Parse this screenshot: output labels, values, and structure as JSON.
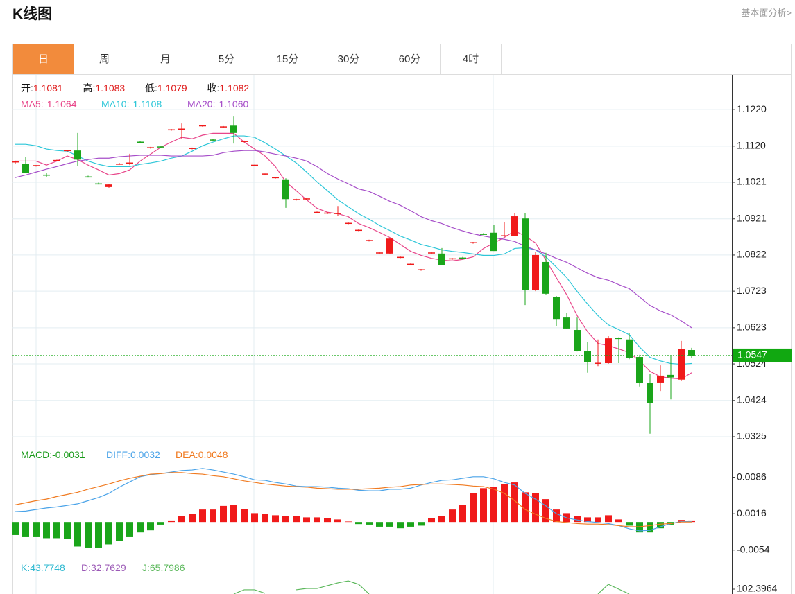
{
  "header": {
    "title": "K线图",
    "link": "基本面分析>"
  },
  "tabs": [
    "日",
    "周",
    "月",
    "5分",
    "15分",
    "30分",
    "60分",
    "4时"
  ],
  "active_tab": 0,
  "chart_data": [
    {
      "type": "candlestick",
      "ohlc_info": [
        {
          "label": "开:",
          "value": "1.1081"
        },
        {
          "label": "高:",
          "value": "1.1083"
        },
        {
          "label": "低:",
          "value": "1.1079"
        },
        {
          "label": "收:",
          "value": "1.1082"
        }
      ],
      "up_color": "#f01a1a",
      "down_color": "#1aa51a",
      "open": [
        1.1076,
        1.1072,
        1.1066,
        1.1042,
        1.1081,
        1.1107,
        1.1108,
        1.1037,
        1.1018,
        1.1008,
        1.1071,
        1.1073,
        1.1132,
        1.1115,
        1.1119,
        1.1164,
        1.1166,
        1.1113,
        1.1175,
        1.1138,
        1.1172,
        1.1176,
        1.1132,
        1.1067,
        1.1043,
        1.1033,
        1.1029,
        1.0973,
        1.0975,
        1.0938,
        1.0936,
        1.0935,
        1.0908,
        1.0889,
        1.0861,
        1.0827,
        1.0826,
        1.0815,
        1.0796,
        1.0781,
        1.0827,
        1.0826,
        1.0811,
        1.0815,
        1.0855,
        1.088,
        1.0883,
        1.0874,
        1.0875,
        1.0922,
        1.0727,
        1.0803,
        1.0708,
        1.0651,
        1.0617,
        1.056,
        1.0525,
        1.0526,
        1.0595,
        1.0591,
        1.0543,
        1.0471,
        1.0473,
        1.0494,
        1.0481,
        1.0562
      ],
      "high": [
        1.108,
        1.1091,
        1.1068,
        1.1046,
        1.1083,
        1.111,
        1.1156,
        1.1039,
        1.102,
        1.1017,
        1.1074,
        1.1099,
        1.1134,
        1.1118,
        1.1121,
        1.1167,
        1.1182,
        1.1116,
        1.1178,
        1.114,
        1.1175,
        1.1201,
        1.1135,
        1.1069,
        1.1045,
        1.1035,
        1.1032,
        1.0976,
        1.0978,
        1.0941,
        1.0939,
        1.0956,
        1.0911,
        1.0892,
        1.0864,
        1.083,
        1.0869,
        1.0818,
        1.0799,
        1.0784,
        1.083,
        1.0841,
        1.0814,
        1.0817,
        1.0858,
        1.0882,
        1.0905,
        1.0913,
        1.0936,
        1.0936,
        1.083,
        1.0828,
        1.071,
        1.0663,
        1.0651,
        1.0583,
        1.0591,
        1.06,
        1.0597,
        1.0608,
        1.0549,
        1.0496,
        1.052,
        1.0545,
        1.0587,
        1.0568
      ],
      "low": [
        1.1072,
        1.1046,
        1.1064,
        1.1036,
        1.1079,
        1.1105,
        1.1065,
        1.1034,
        1.1015,
        1.1006,
        1.1069,
        1.1068,
        1.1129,
        1.1113,
        1.1116,
        1.1162,
        1.114,
        1.1111,
        1.1173,
        1.1135,
        1.117,
        1.1127,
        1.113,
        1.1065,
        1.1041,
        1.1031,
        1.0951,
        1.0971,
        1.0973,
        1.0936,
        1.0934,
        1.0928,
        1.0906,
        1.0887,
        1.0859,
        1.0825,
        1.0824,
        1.0813,
        1.0794,
        1.0779,
        1.0825,
        1.0795,
        1.0809,
        1.0812,
        1.0853,
        1.0877,
        1.0833,
        1.0872,
        1.0873,
        1.0685,
        1.0723,
        1.0714,
        1.0628,
        1.0619,
        1.0558,
        1.05,
        1.0518,
        1.0524,
        1.0526,
        1.0537,
        1.0462,
        1.0333,
        1.045,
        1.0427,
        1.0477,
        1.054
      ],
      "close": [
        1.1078,
        1.1047,
        1.1068,
        1.104,
        1.1082,
        1.1109,
        1.1083,
        1.1035,
        1.1016,
        1.1015,
        1.1072,
        1.1075,
        1.113,
        1.1117,
        1.1117,
        1.1166,
        1.1168,
        1.1115,
        1.1177,
        1.1136,
        1.1174,
        1.1156,
        1.1134,
        1.1069,
        1.1045,
        1.1035,
        1.0975,
        1.0975,
        1.0977,
        1.094,
        1.0938,
        1.0937,
        1.091,
        1.0891,
        1.0863,
        1.0829,
        1.0867,
        1.0817,
        1.0798,
        1.0783,
        1.0829,
        1.0795,
        1.0813,
        1.0813,
        1.0857,
        1.0878,
        1.0833,
        1.0876,
        1.0928,
        1.0727,
        1.0822,
        1.0716,
        1.0647,
        1.0621,
        1.056,
        1.0528,
        1.0527,
        1.0594,
        1.0593,
        1.0541,
        1.0471,
        1.0416,
        1.0492,
        1.0487,
        1.0564,
        1.0547
      ],
      "series": [
        {
          "name": "MA5:",
          "legend_value": "1.1064",
          "color": "#e8468a",
          "values": [
            1.1079,
            1.1079,
            1.1079,
            1.1068,
            1.1079,
            1.1093,
            1.1083,
            1.1068,
            1.1055,
            1.1041,
            1.1045,
            1.1055,
            1.1079,
            1.1098,
            1.1117,
            1.1131,
            1.1144,
            1.114,
            1.115,
            1.1155,
            1.1155,
            1.1155,
            1.1131,
            1.1112,
            1.1093,
            1.1064,
            1.1022,
            1.0998,
            1.0973,
            1.095,
            1.0939,
            1.0935,
            1.0927,
            1.0908,
            1.0897,
            1.0884,
            1.087,
            1.0851,
            1.0832,
            1.0821,
            1.0813,
            1.0808,
            1.0806,
            1.081,
            1.0817,
            1.084,
            1.0855,
            1.087,
            1.0888,
            1.0874,
            1.0855,
            1.0808,
            1.076,
            1.0713,
            1.0656,
            1.0612,
            1.058,
            1.0574,
            1.0565,
            1.0555,
            1.0532,
            1.0504,
            1.0489,
            1.0485,
            1.0483,
            1.05
          ]
        },
        {
          "name": "MA10:",
          "legend_value": "1.1108",
          "color": "#2cc6d8",
          "values": [
            1.1125,
            1.1125,
            1.1121,
            1.1112,
            1.1108,
            1.1106,
            1.1093,
            1.1079,
            1.107,
            1.1064,
            1.1064,
            1.1064,
            1.107,
            1.1074,
            1.1079,
            1.1087,
            1.1093,
            1.1106,
            1.1121,
            1.1131,
            1.114,
            1.1148,
            1.1148,
            1.1144,
            1.1129,
            1.1112,
            1.1093,
            1.1074,
            1.1049,
            1.1022,
            1.0998,
            1.0973,
            1.0954,
            1.0935,
            1.092,
            1.0903,
            1.0889,
            1.0874,
            1.0863,
            1.0851,
            1.0844,
            1.0836,
            1.0832,
            1.0829,
            1.0825,
            1.0821,
            1.0821,
            1.0825,
            1.084,
            1.0842,
            1.0836,
            1.0817,
            1.0789,
            1.076,
            1.0722,
            1.0688,
            1.0656,
            1.0631,
            1.0618,
            1.0604,
            1.057,
            1.0542,
            1.0532,
            1.0525,
            1.0523,
            1.0525
          ]
        },
        {
          "name": "MA20:",
          "legend_value": "1.1060",
          "color": "#a64ec9",
          "values": [
            1.1034,
            1.1041,
            1.1049,
            1.1057,
            1.1064,
            1.1072,
            1.1079,
            1.1083,
            1.1087,
            1.1087,
            1.1091,
            1.1093,
            1.1095,
            1.1095,
            1.1095,
            1.1093,
            1.1093,
            1.1093,
            1.1093,
            1.1095,
            1.1102,
            1.1106,
            1.1108,
            1.1108,
            1.1104,
            1.1098,
            1.1093,
            1.1087,
            1.1079,
            1.1064,
            1.1045,
            1.103,
            1.1017,
            1.1003,
            1.0996,
            1.0983,
            1.0969,
            1.0958,
            1.0943,
            1.0927,
            1.0916,
            1.0908,
            1.0897,
            1.0888,
            1.088,
            1.0874,
            1.0869,
            1.0865,
            1.0859,
            1.0846,
            1.0836,
            1.0825,
            1.0813,
            1.0802,
            1.0787,
            1.0772,
            1.076,
            1.0753,
            1.0741,
            1.073,
            1.0707,
            1.0684,
            1.0669,
            1.0658,
            1.0642,
            1.0623
          ]
        }
      ],
      "last_price": 1.0547,
      "last_price_color": "#11a811",
      "ylim": [
        1.0306,
        1.1315
      ],
      "yticks": [
        {
          "value": 1.122,
          "label": "1.1220"
        },
        {
          "value": 1.112,
          "label": "1.1120"
        },
        1.1021,
        1.0921,
        1.0822,
        1.0723,
        1.0623,
        1.0524,
        1.0424,
        1.0325
      ],
      "grid": true
    },
    {
      "type": "macd",
      "up_color": "#f01a1a",
      "down_color": "#1aa51a",
      "series": [
        {
          "name": "MACD:",
          "legend_value": "-0.0031",
          "type": "bar",
          "color": "#1a9a1a",
          "values": [
            -0.0025,
            -0.0029,
            -0.0029,
            -0.0031,
            -0.0031,
            -0.0033,
            -0.0047,
            -0.0049,
            -0.0049,
            -0.0043,
            -0.0036,
            -0.0029,
            -0.002,
            -0.0016,
            -0.0005,
            0.0003,
            0.0011,
            0.0015,
            0.0024,
            0.0024,
            0.0031,
            0.0033,
            0.0025,
            0.0017,
            0.0016,
            0.0013,
            0.0011,
            0.0011,
            0.0009,
            0.0009,
            0.0007,
            0.0005,
            0.0001,
            -0.0004,
            -0.0005,
            -0.0009,
            -0.0009,
            -0.0012,
            -0.0009,
            -0.0007,
            0.0007,
            0.0012,
            0.0024,
            0.0033,
            0.0055,
            0.0065,
            0.0068,
            0.0073,
            0.0076,
            0.0057,
            0.0055,
            0.0044,
            0.0024,
            0.0017,
            0.0011,
            0.0009,
            0.0009,
            0.0013,
            0.0005,
            -0.0007,
            -0.002,
            -0.002,
            -0.0012,
            -0.0005,
            0.0004,
            0.0003
          ]
        },
        {
          "name": "DIFF:",
          "legend_value": "0.0032",
          "type": "line",
          "color": "#4aa3e8",
          "values": [
            0.002,
            0.0021,
            0.0024,
            0.0027,
            0.0029,
            0.0032,
            0.0035,
            0.0041,
            0.0047,
            0.0055,
            0.0067,
            0.0077,
            0.0087,
            0.0091,
            0.0093,
            0.0096,
            0.0099,
            0.01,
            0.0103,
            0.01,
            0.0096,
            0.0092,
            0.0087,
            0.0081,
            0.008,
            0.0076,
            0.0073,
            0.0069,
            0.0068,
            0.0068,
            0.0067,
            0.0065,
            0.0064,
            0.0061,
            0.006,
            0.006,
            0.0063,
            0.0063,
            0.0065,
            0.0071,
            0.0076,
            0.008,
            0.0081,
            0.0084,
            0.0087,
            0.0087,
            0.0083,
            0.0076,
            0.0071,
            0.0055,
            0.0044,
            0.0031,
            0.0016,
            0.0008,
            0.0004,
            0.0001,
            -0.0001,
            -0.0003,
            -0.0007,
            -0.0013,
            -0.0017,
            -0.0016,
            -0.0009,
            -0.0003,
            0.0001,
            0.0001
          ]
        },
        {
          "name": "DEA:",
          "legend_value": "0.0048",
          "type": "line",
          "color": "#f07a20",
          "values": [
            0.0033,
            0.0037,
            0.0041,
            0.0044,
            0.0049,
            0.0053,
            0.0057,
            0.0063,
            0.0068,
            0.0073,
            0.0079,
            0.0084,
            0.0088,
            0.0092,
            0.0093,
            0.0095,
            0.0095,
            0.0093,
            0.0092,
            0.0089,
            0.0087,
            0.0083,
            0.0079,
            0.0076,
            0.0073,
            0.0071,
            0.0069,
            0.0068,
            0.0067,
            0.0065,
            0.0064,
            0.0063,
            0.0063,
            0.0063,
            0.0064,
            0.0065,
            0.0067,
            0.0068,
            0.0071,
            0.0072,
            0.0073,
            0.0073,
            0.0072,
            0.0071,
            0.0069,
            0.0068,
            0.0063,
            0.0055,
            0.0041,
            0.0024,
            0.0015,
            0.0007,
            0.0001,
            -0.0001,
            -0.0003,
            -0.0004,
            -0.0004,
            -0.0005,
            -0.0007,
            -0.0009,
            -0.0009,
            -0.0007,
            -0.0004,
            -0.0003,
            0,
            0
          ]
        }
      ],
      "ylim": [
        -0.0069,
        0.0144
      ],
      "yticks": [
        0.0086,
        0.0016,
        -0.0054
      ],
      "grid": false
    },
    {
      "type": "kdj",
      "series": [
        {
          "name": "K:",
          "legend_value": "43.7748",
          "type": "line",
          "color": "#2cb8d0"
        },
        {
          "name": "D:",
          "legend_value": "32.7629",
          "type": "line",
          "color": "#9b59b6"
        },
        {
          "name": "J:",
          "legend_value": "65.7986",
          "type": "line",
          "color": "#5cb85c",
          "values": [
            null,
            null,
            null,
            null,
            null,
            null,
            null,
            null,
            null,
            null,
            null,
            null,
            null,
            null,
            null,
            null,
            null,
            null,
            null,
            null,
            null,
            99.5,
            102.0,
            102.0,
            99.9,
            null,
            null,
            102.0,
            102.8,
            102.8,
            104.5,
            106.2,
            107.4,
            105.3,
            99.5,
            null,
            null,
            null,
            null,
            null,
            null,
            null,
            null,
            null,
            null,
            null,
            null,
            null,
            null,
            null,
            null,
            null,
            null,
            null,
            null,
            null,
            99.5,
            105.3,
            102.4,
            99.5,
            null,
            null,
            null,
            null,
            null,
            null
          ]
        }
      ],
      "ylim": [
        -20,
        120
      ],
      "yticks": [
        102.3964
      ],
      "grid": false
    }
  ]
}
